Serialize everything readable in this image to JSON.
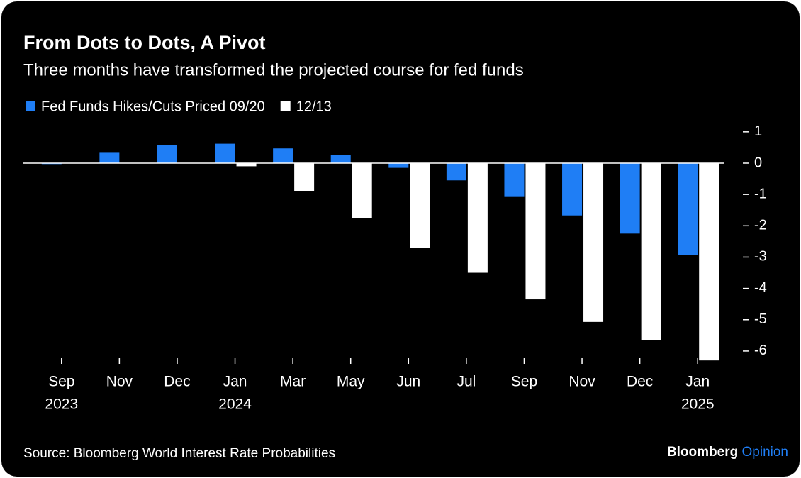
{
  "chart_data": {
    "type": "bar",
    "title": "From Dots to Dots, A Pivot",
    "subtitle": "Three months have transformed the projected course for fed funds",
    "categories": [
      "Sep",
      "Nov",
      "Dec",
      "Jan",
      "Mar",
      "May",
      "Jun",
      "Jul",
      "Sep",
      "Nov",
      "Dec",
      "Jan"
    ],
    "x_years": [
      "2023",
      null,
      null,
      "2024",
      null,
      null,
      null,
      null,
      null,
      null,
      null,
      "2025"
    ],
    "series": [
      {
        "name": "Fed Funds Hikes/Cuts Priced 09/20",
        "color": "#1f7ef5",
        "values": [
          -0.03,
          0.33,
          0.57,
          0.62,
          0.47,
          0.25,
          -0.15,
          -0.55,
          -1.08,
          -1.67,
          -2.25,
          -2.93
        ]
      },
      {
        "name": "12/13",
        "color": "#ffffff",
        "values": [
          0,
          0,
          0,
          -0.1,
          -0.9,
          -1.75,
          -2.7,
          -3.5,
          -4.35,
          -5.07,
          -5.65,
          -6.3
        ]
      }
    ],
    "ylim": [
      -6.5,
      1.2
    ],
    "yticks": [
      1,
      0,
      -1,
      -2,
      -3,
      -4,
      -5,
      -6
    ],
    "source": "Source: Bloomberg World Interest Rate Probabilities",
    "brand": [
      "Bloomberg",
      "Opinion"
    ]
  }
}
